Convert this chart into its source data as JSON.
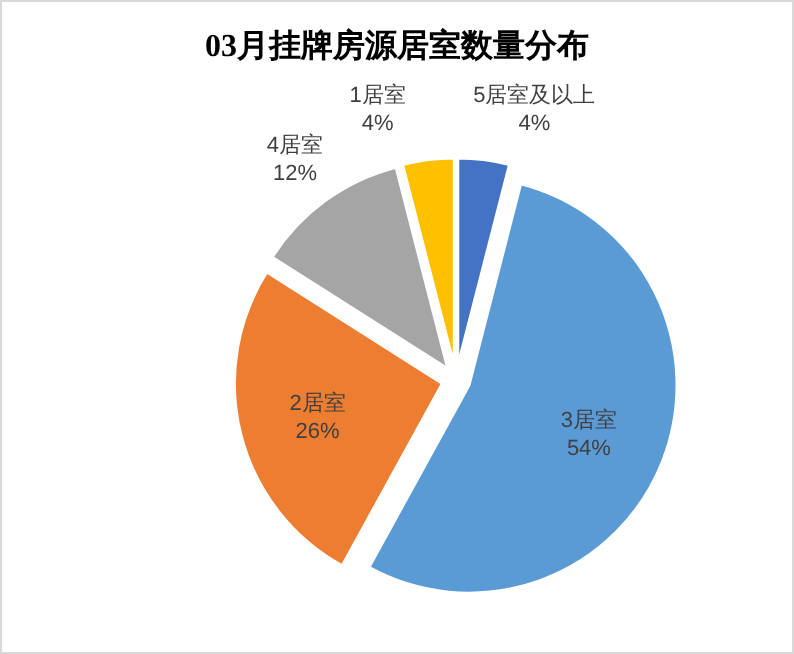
{
  "chart_data": {
    "type": "pie",
    "title": "03月挂牌房源居室数量分布",
    "categories": [
      "5居室及以上",
      "3居室",
      "2居室",
      "4居室",
      "1居室"
    ],
    "values": [
      4,
      54,
      26,
      12,
      4
    ],
    "colors": [
      "#4472c4",
      "#5b9bd5",
      "#ed7d31",
      "#a5a5a5",
      "#ffc000"
    ],
    "value_labels": [
      "4%",
      "54%",
      "26%",
      "12%",
      "4%"
    ]
  }
}
